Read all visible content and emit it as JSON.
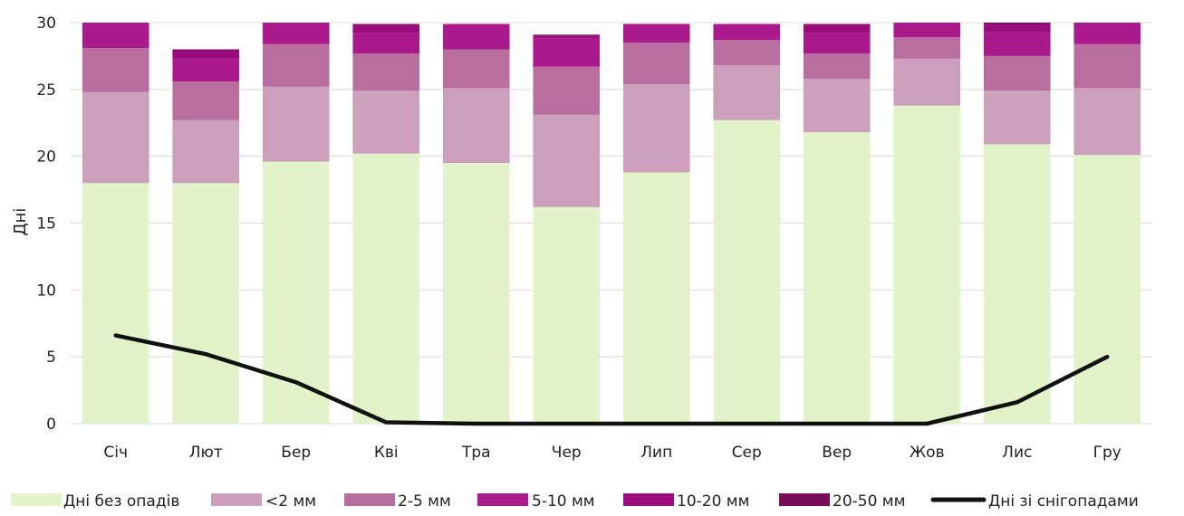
{
  "chart_data": {
    "type": "bar",
    "stacked": true,
    "ylabel": "Дні",
    "xlabel": "",
    "ylim": [
      0,
      30
    ],
    "yticks": [
      0,
      5,
      10,
      15,
      20,
      25,
      30
    ],
    "grid": true,
    "legend_position": "bottom",
    "categories": [
      "Січ",
      "Лют",
      "Бер",
      "Кві",
      "Тра",
      "Чер",
      "Лип",
      "Сер",
      "Вер",
      "Жов",
      "Лис",
      "Гру"
    ],
    "series": [
      {
        "name": "Дні без опадів",
        "color": "#e2f2c9",
        "values": [
          18.0,
          18.0,
          19.6,
          20.2,
          19.5,
          16.2,
          18.8,
          22.7,
          21.8,
          23.8,
          20.9,
          20.1
        ]
      },
      {
        "name": "<2 мм",
        "color": "#cc9fbd",
        "values": [
          6.8,
          4.7,
          5.6,
          4.7,
          5.6,
          6.9,
          6.6,
          4.1,
          4.0,
          3.5,
          4.0,
          5.0
        ]
      },
      {
        "name": "2-5 мм",
        "color": "#b86e9e",
        "values": [
          3.3,
          2.9,
          3.2,
          2.8,
          2.9,
          3.6,
          3.1,
          1.9,
          1.9,
          1.6,
          2.6,
          3.3
        ]
      },
      {
        "name": "5-10 мм",
        "color": "#aa1a8c",
        "values": [
          1.9,
          1.7,
          1.6,
          1.5,
          1.9,
          2.1,
          1.4,
          1.2,
          1.5,
          1.1,
          1.8,
          1.6
        ]
      },
      {
        "name": "10-20 мм",
        "color": "#9a0c7c",
        "values": [
          0.0,
          0.6,
          0.0,
          0.6,
          0.0,
          0.2,
          0.0,
          0.0,
          0.6,
          0.0,
          0.6,
          0.0
        ]
      },
      {
        "name": "20-50 мм",
        "color": "#7a0a5c",
        "values": [
          0.0,
          0.1,
          0.0,
          0.1,
          0.0,
          0.1,
          0.0,
          0.0,
          0.1,
          0.0,
          0.1,
          0.0
        ]
      }
    ],
    "line_series": {
      "name": "Дні зі снігопадами",
      "color": "#111111",
      "values": [
        6.6,
        5.2,
        3.1,
        0.1,
        0.0,
        0.0,
        0.0,
        0.0,
        0.0,
        0.0,
        1.6,
        5.0
      ]
    }
  }
}
